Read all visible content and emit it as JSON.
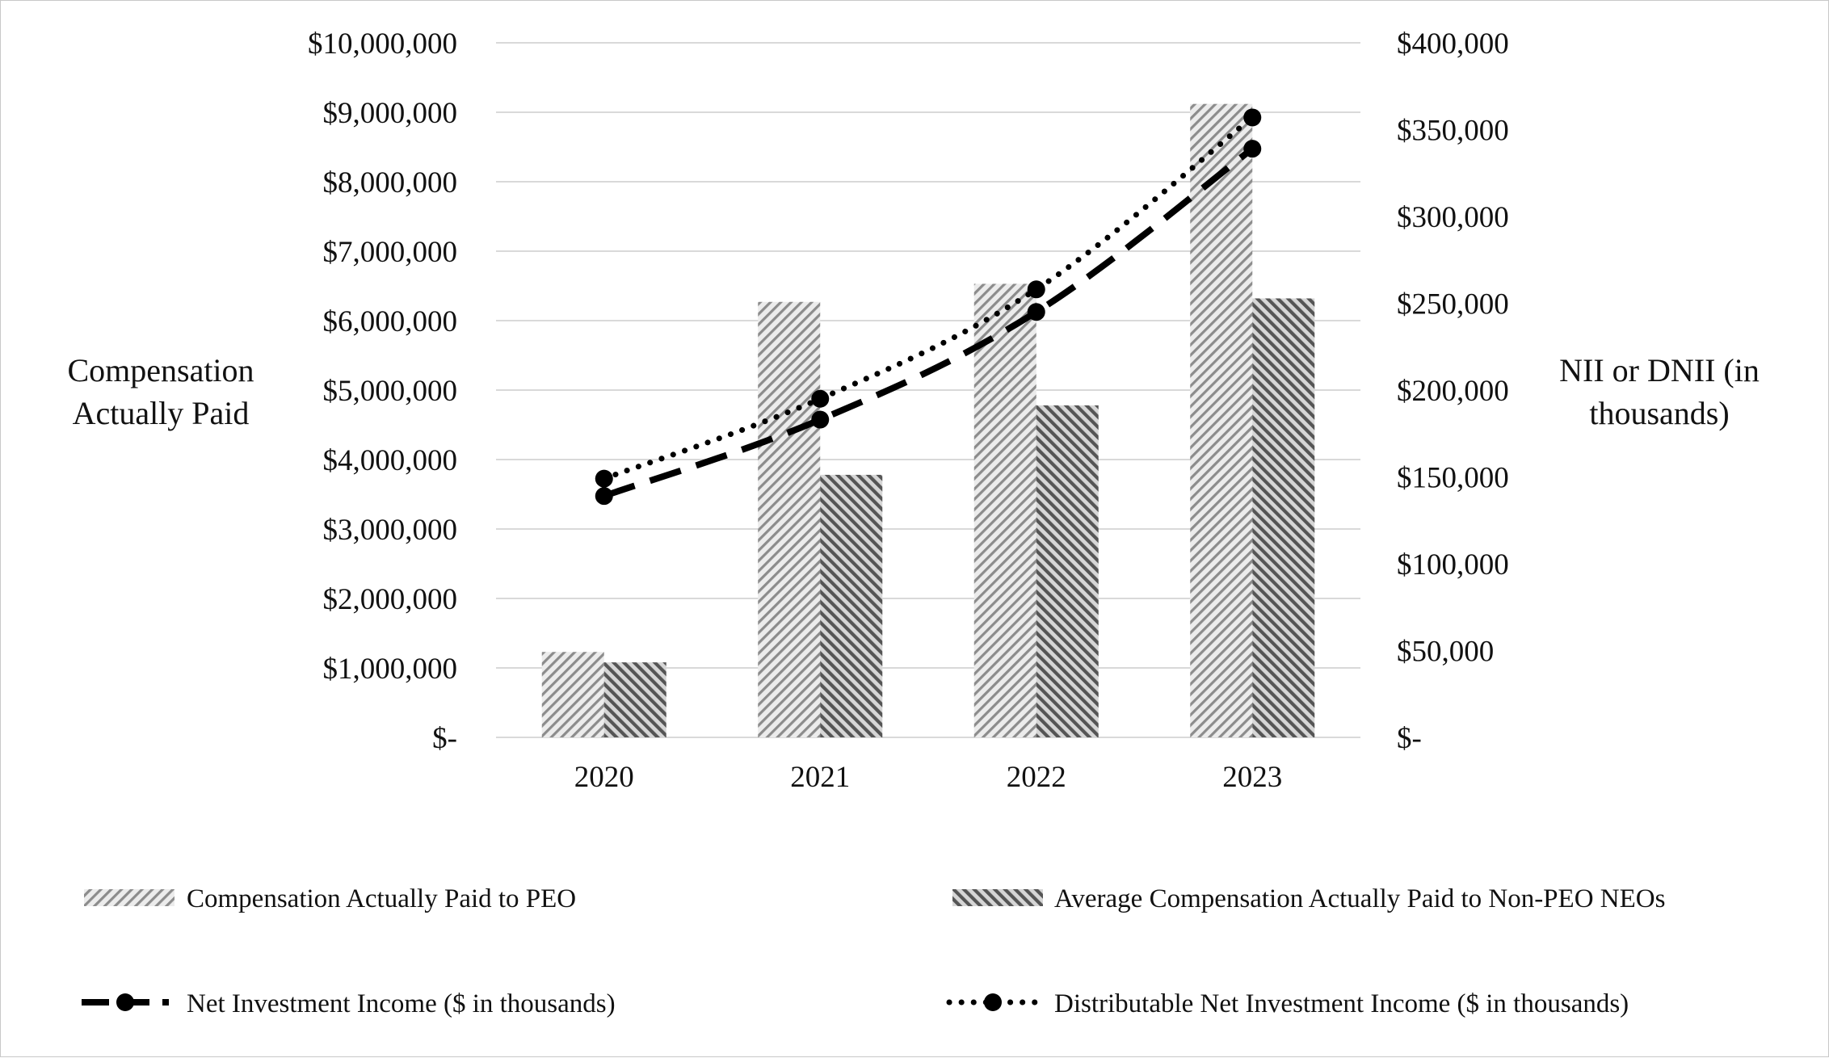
{
  "chart_data": {
    "type": "bar",
    "title": "",
    "categories": [
      "2020",
      "2021",
      "2022",
      "2023"
    ],
    "left_axis": {
      "label_line1": "Compensation",
      "label_line2": "Actually Paid",
      "ylim": [
        0,
        10000000
      ],
      "ticks": [
        0,
        1000000,
        2000000,
        3000000,
        4000000,
        5000000,
        6000000,
        7000000,
        8000000,
        9000000,
        10000000
      ],
      "tick_labels": [
        "$-",
        "$1,000,000",
        "$2,000,000",
        "$3,000,000",
        "$4,000,000",
        "$5,000,000",
        "$6,000,000",
        "$7,000,000",
        "$8,000,000",
        "$9,000,000",
        "$10,000,000"
      ]
    },
    "right_axis": {
      "label_line1": "NII or DNII (in",
      "label_line2": "thousands)",
      "ylim": [
        0,
        400000
      ],
      "ticks": [
        0,
        50000,
        100000,
        150000,
        200000,
        250000,
        300000,
        350000,
        400000
      ],
      "tick_labels": [
        "$-",
        "$50,000",
        "$100,000",
        "$150,000",
        "$200,000",
        "$250,000",
        "$300,000",
        "$350,000",
        "$400,000"
      ]
    },
    "bar_series": [
      {
        "name": "Compensation Actually Paid to PEO",
        "axis": "left",
        "pattern": "light-hatch",
        "values": [
          1230000,
          6270000,
          6530000,
          9120000
        ]
      },
      {
        "name": "Average Compensation Actually Paid to Non-PEO NEOs",
        "axis": "left",
        "pattern": "dark-hatch",
        "values": [
          1080000,
          3780000,
          4780000,
          6320000
        ]
      }
    ],
    "line_series": [
      {
        "name": "Net Investment Income ($ in thousands)",
        "axis": "right",
        "style": "dashed",
        "values": [
          139000,
          183000,
          245000,
          339000
        ]
      },
      {
        "name": "Distributable Net Investment Income ($ in thousands)",
        "axis": "right",
        "style": "dotted",
        "values": [
          149000,
          195000,
          258000,
          357000
        ]
      }
    ],
    "grid": true,
    "legend_position": "bottom"
  },
  "colors": {
    "grid": "#d9d9d9",
    "light_bar_bg": "#ececec",
    "light_bar_stripe": "#8c8c8c",
    "dark_bar_bg": "#d6d6d6",
    "dark_bar_stripe": "#555555",
    "line": "#000000"
  }
}
